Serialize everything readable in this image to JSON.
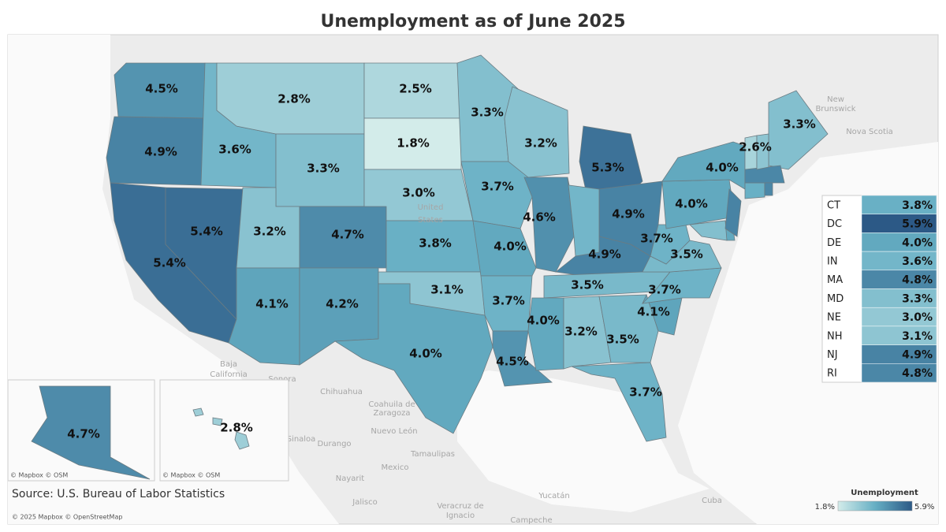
{
  "chart_data": {
    "type": "choropleth",
    "title": "Unemployment as of June 2025",
    "values": [
      4.5,
      4.9,
      5.4,
      5.4,
      3.6,
      2.8,
      3.3,
      3.2,
      4.1,
      4.7,
      4.2,
      2.5,
      1.8,
      3.0,
      3.8,
      3.1,
      4.0,
      3.3,
      3.7,
      4.0,
      3.7,
      4.5,
      3.2,
      4.6,
      5.3,
      4.9,
      4.9,
      3.5,
      4.0,
      3.2,
      3.5,
      3.7,
      4.1,
      3.7,
      3.5,
      3.7,
      4.0,
      4.0,
      2.6,
      3.3,
      4.7,
      2.8
    ],
    "value_labels": [
      "4.5%",
      "4.9%",
      "5.4%",
      "5.4%",
      "3.6%",
      "2.8%",
      "3.3%",
      "3.2%",
      "4.1%",
      "4.7%",
      "4.2%",
      "2.5%",
      "1.8%",
      "3.0%",
      "3.8%",
      "3.1%",
      "4.0%",
      "3.3%",
      "3.7%",
      "4.0%",
      "3.7%",
      "4.5%",
      "3.2%",
      "4.6%",
      "5.3%",
      "4.9%",
      "4.9%",
      "3.5%",
      "4.0%",
      "3.2%",
      "3.5%",
      "3.7%",
      "4.1%",
      "3.7%",
      "3.5%",
      "3.7%",
      "4.0%",
      "4.0%",
      "2.6%",
      "3.3%",
      "4.7%",
      "2.8%"
    ],
    "colors": [
      "#d3ecea",
      "#66afc4",
      "#2c5986"
    ],
    "table": {
      "categories": [
        "CT",
        "DC",
        "DE",
        "IN",
        "MA",
        "MD",
        "NE",
        "NH",
        "NJ",
        "RI"
      ],
      "values": [
        3.8,
        5.9,
        4.0,
        3.6,
        4.8,
        3.3,
        3.0,
        3.1,
        4.9,
        4.8
      ],
      "value_labels": [
        "3.8%",
        "5.9%",
        "4.0%",
        "3.6%",
        "4.8%",
        "3.3%",
        "3.0%",
        "3.1%",
        "4.9%",
        "4.8%"
      ]
    },
    "legend": {
      "title": "Unemployment",
      "range": [
        {
          "value": 1.8,
          "label": "1.8%"
        },
        {
          "value": 5.9,
          "label": "5.9%"
        }
      ]
    },
    "source": "Source: U.S. Bureau of Labor Statistics",
    "basemap_labels": [
      "United",
      "States",
      "New",
      "Brunswick",
      "Nova Scotia",
      "Baja",
      "California",
      "Sonora",
      "Chihuahua",
      "Coahuila de",
      "Zaragoza",
      "Nuevo León",
      "Sinaloa",
      "Durango",
      "Tamaulipas",
      "Mexico",
      "Nayarit",
      "Jalisco",
      "Veracruz de",
      "Ignacio",
      "Yucatán",
      "Cuba",
      "Campeche"
    ],
    "attributions": [
      "© Mapbox © OSM",
      "© Mapbox © OSM",
      "© 2025 Mapbox © OpenStreetMap"
    ]
  }
}
